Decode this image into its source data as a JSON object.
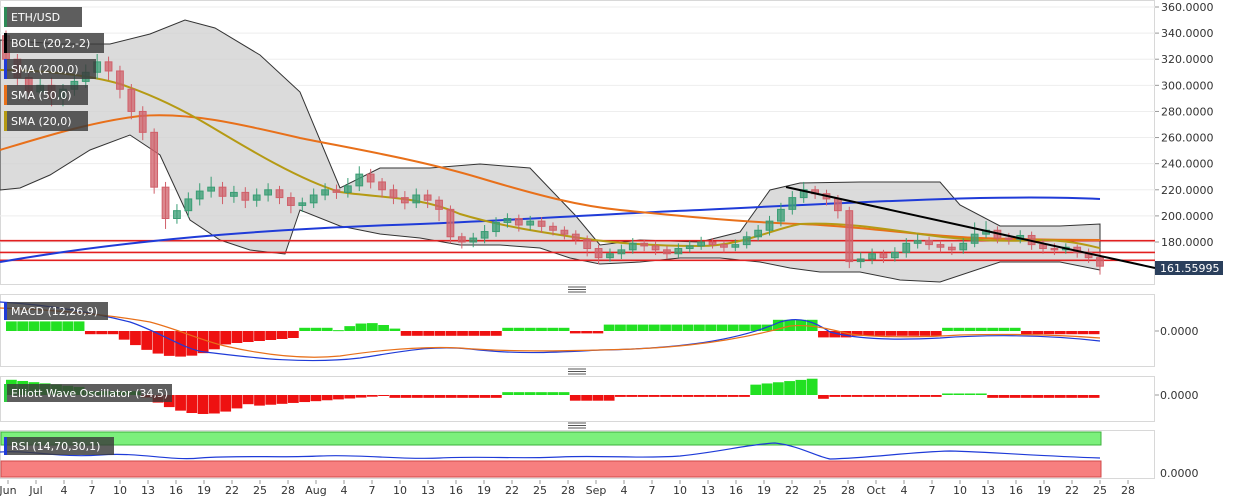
{
  "chart_data": {
    "type": "candlestick",
    "symbol": "ETH/USD",
    "legend": [
      {
        "label": "ETH/USD",
        "color": "#2e8b57"
      },
      {
        "label": "BOLL (20,2,-2)",
        "color": "#000000"
      },
      {
        "label": "SMA (200,0)",
        "color": "#1f3bd8"
      },
      {
        "label": "SMA (50,0)",
        "color": "#e8701a"
      },
      {
        "label": "SMA (20,0)",
        "color": "#b59a14"
      }
    ],
    "price_axis": {
      "min": 145,
      "max": 362,
      "ticks": [
        "360.0000",
        "340.0000",
        "320.0000",
        "300.0000",
        "280.0000",
        "260.0000",
        "240.0000",
        "220.0000",
        "200.0000",
        "180.0000"
      ],
      "last_price_label": "161.55995",
      "last_price": 161.56
    },
    "x_axis": {
      "labels": [
        "Jun",
        "Jul",
        "4",
        "7",
        "10",
        "13",
        "16",
        "19",
        "22",
        "25",
        "28",
        "Aug",
        "4",
        "7",
        "10",
        "13",
        "16",
        "19",
        "22",
        "25",
        "28",
        "Sep",
        "4",
        "7",
        "10",
        "13",
        "16",
        "19",
        "22",
        "25",
        "28",
        "Oct",
        "4",
        "7",
        "10",
        "13",
        "16",
        "19",
        "22",
        "25",
        "28"
      ]
    },
    "horizontal_lines": [
      181,
      172,
      166
    ],
    "candles": [
      [
        338,
        320,
        342,
        312
      ],
      [
        320,
        306,
        324,
        300
      ],
      [
        306,
        295,
        310,
        288
      ],
      [
        295,
        300,
        305,
        290
      ],
      [
        300,
        290,
        306,
        284
      ],
      [
        290,
        297,
        301,
        284
      ],
      [
        297,
        303,
        308,
        292
      ],
      [
        303,
        310,
        316,
        298
      ],
      [
        310,
        318,
        324,
        305
      ],
      [
        318,
        311,
        322,
        304
      ],
      [
        311,
        297,
        315,
        290
      ],
      [
        297,
        280,
        301,
        274
      ],
      [
        280,
        264,
        284,
        258
      ],
      [
        264,
        222,
        267,
        217
      ],
      [
        222,
        198,
        226,
        190
      ],
      [
        198,
        204,
        209,
        194
      ],
      [
        204,
        213,
        218,
        199
      ],
      [
        213,
        219,
        225,
        208
      ],
      [
        219,
        222,
        230,
        214
      ],
      [
        222,
        215,
        226,
        209
      ],
      [
        215,
        218,
        223,
        210
      ],
      [
        218,
        212,
        222,
        206
      ],
      [
        212,
        216,
        221,
        207
      ],
      [
        216,
        220,
        225,
        211
      ],
      [
        220,
        214,
        223,
        209
      ],
      [
        214,
        208,
        218,
        202
      ],
      [
        208,
        210,
        214,
        203
      ],
      [
        210,
        216,
        221,
        206
      ],
      [
        216,
        220,
        225,
        212
      ],
      [
        220,
        218,
        224,
        213
      ],
      [
        218,
        223,
        229,
        214
      ],
      [
        223,
        232,
        238,
        219
      ],
      [
        232,
        226,
        236,
        221
      ],
      [
        226,
        220,
        229,
        214
      ],
      [
        220,
        214,
        224,
        209
      ],
      [
        214,
        210,
        219,
        205
      ],
      [
        210,
        216,
        221,
        206
      ],
      [
        216,
        212,
        220,
        206
      ],
      [
        212,
        205,
        215,
        196
      ],
      [
        205,
        184,
        208,
        179
      ],
      [
        184,
        180,
        187,
        175
      ],
      [
        180,
        183,
        187,
        176
      ],
      [
        183,
        188,
        193,
        179
      ],
      [
        188,
        195,
        199,
        184
      ],
      [
        195,
        198,
        202,
        191
      ],
      [
        198,
        193,
        201,
        188
      ],
      [
        193,
        196,
        200,
        189
      ],
      [
        196,
        192,
        199,
        187
      ],
      [
        192,
        189,
        195,
        185
      ],
      [
        189,
        186,
        192,
        182
      ],
      [
        186,
        182,
        189,
        178
      ],
      [
        182,
        175,
        185,
        169
      ],
      [
        175,
        168,
        178,
        163
      ],
      [
        168,
        171,
        175,
        165
      ],
      [
        171,
        174,
        178,
        167
      ],
      [
        174,
        179,
        183,
        171
      ],
      [
        179,
        177,
        182,
        173
      ],
      [
        177,
        174,
        181,
        170
      ],
      [
        174,
        171,
        177,
        167
      ],
      [
        171,
        175,
        179,
        168
      ],
      [
        175,
        177,
        181,
        172
      ],
      [
        177,
        180,
        184,
        174
      ],
      [
        180,
        178,
        183,
        175
      ],
      [
        178,
        176,
        181,
        172
      ],
      [
        176,
        178,
        182,
        173
      ],
      [
        178,
        184,
        188,
        175
      ],
      [
        184,
        189,
        193,
        181
      ],
      [
        189,
        196,
        200,
        185
      ],
      [
        196,
        205,
        210,
        192
      ],
      [
        205,
        214,
        219,
        201
      ],
      [
        214,
        220,
        226,
        210
      ],
      [
        220,
        217,
        223,
        213
      ],
      [
        217,
        213,
        220,
        208
      ],
      [
        213,
        204,
        216,
        198
      ],
      [
        204,
        165,
        207,
        160
      ],
      [
        165,
        167,
        172,
        160
      ],
      [
        167,
        171,
        175,
        163
      ],
      [
        171,
        168,
        174,
        164
      ],
      [
        168,
        172,
        176,
        165
      ],
      [
        172,
        179,
        183,
        168
      ],
      [
        179,
        181,
        186,
        175
      ],
      [
        181,
        178,
        184,
        174
      ],
      [
        178,
        176,
        181,
        172
      ],
      [
        176,
        174,
        179,
        170
      ],
      [
        174,
        179,
        183,
        171
      ],
      [
        179,
        186,
        195,
        176
      ],
      [
        186,
        189,
        196,
        183
      ],
      [
        189,
        183,
        192,
        179
      ],
      [
        183,
        182,
        187,
        178
      ],
      [
        182,
        185,
        189,
        179
      ],
      [
        185,
        178,
        188,
        174
      ],
      [
        178,
        175,
        182,
        171
      ],
      [
        175,
        174,
        179,
        170
      ],
      [
        174,
        176,
        179,
        171
      ],
      [
        176,
        172,
        178,
        168
      ],
      [
        172,
        168,
        175,
        164
      ],
      [
        168,
        161.5,
        172,
        155
      ]
    ]
  }
}
